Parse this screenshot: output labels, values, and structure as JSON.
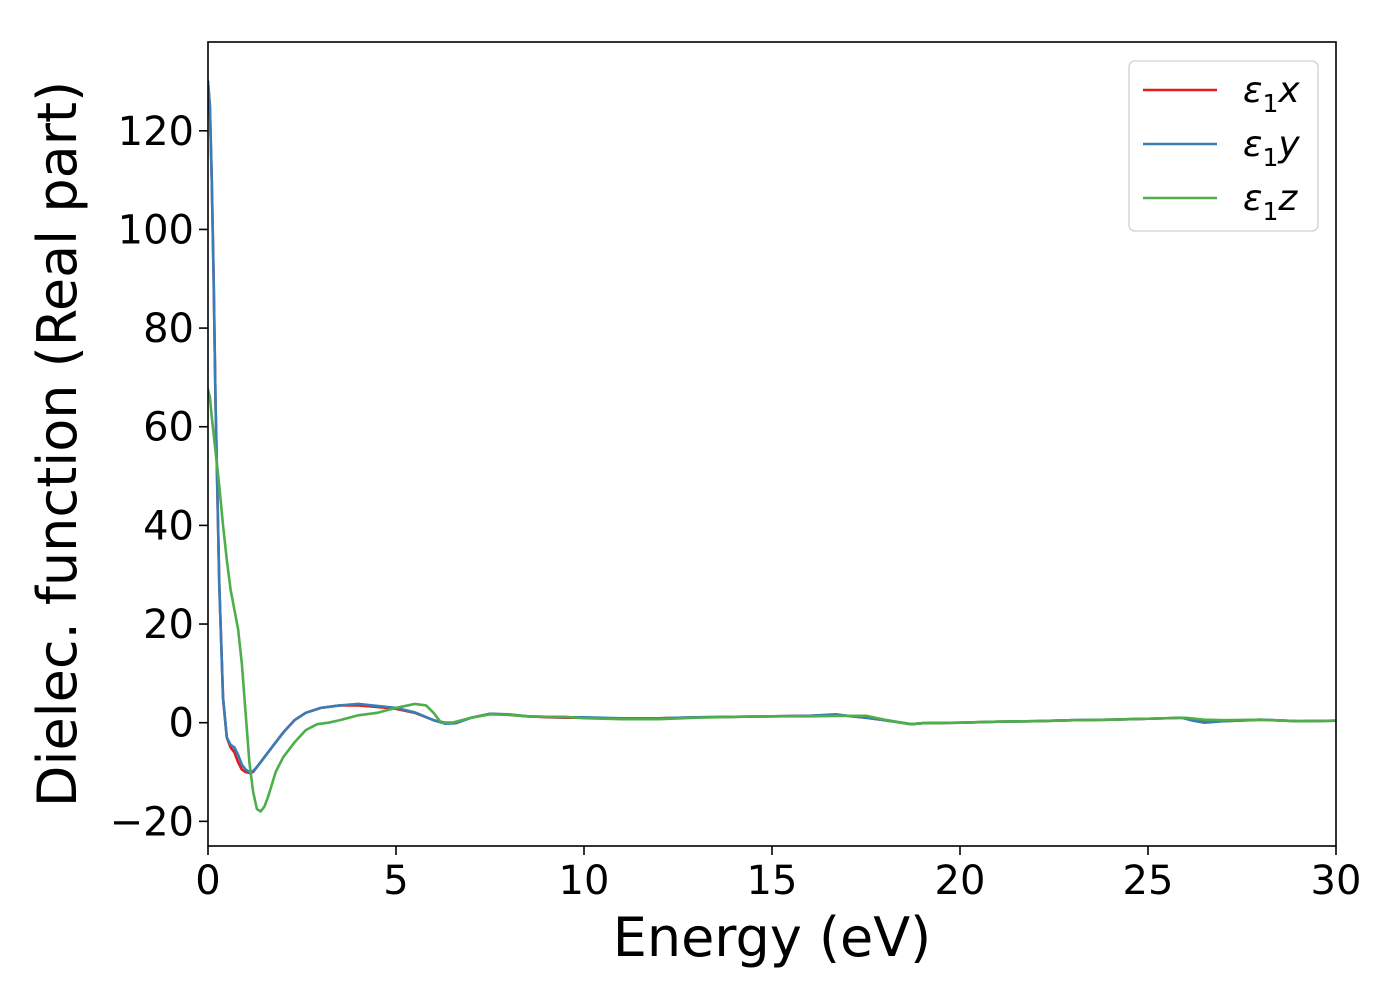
{
  "chart_data": {
    "type": "line",
    "title": "",
    "xlabel": "Energy (eV)",
    "ylabel": "Dielec. function (Real part)",
    "xlim": [
      0,
      30
    ],
    "ylim": [
      -25,
      138
    ],
    "xticks": [
      0,
      5,
      10,
      15,
      20,
      25,
      30
    ],
    "yticks": [
      -20,
      0,
      20,
      40,
      60,
      80,
      100,
      120
    ],
    "xtick_labels": [
      "0",
      "5",
      "10",
      "15",
      "20",
      "25",
      "30"
    ],
    "ytick_labels": [
      "−20",
      "0",
      "20",
      "40",
      "60",
      "80",
      "100",
      "120"
    ],
    "grid": false,
    "legend_placement": "top-right",
    "series": [
      {
        "name": "ε1x",
        "name_base": "ε",
        "name_sub": "1",
        "name_suffix": "x",
        "color": "#e41a1c",
        "x": [
          0,
          0.05,
          0.1,
          0.15,
          0.2,
          0.3,
          0.4,
          0.5,
          0.6,
          0.7,
          0.8,
          0.9,
          1.0,
          1.1,
          1.2,
          1.3,
          1.5,
          1.7,
          2.0,
          2.3,
          2.6,
          3.0,
          3.5,
          4.0,
          4.5,
          5.0,
          5.5,
          6.0,
          6.3,
          6.6,
          7.0,
          7.5,
          8.0,
          8.5,
          9.0,
          9.5,
          10.0,
          11.0,
          12.0,
          13.0,
          14.0,
          15.0,
          16.0,
          16.7,
          17.0,
          17.5,
          18.0,
          18.7,
          19.0,
          20.0,
          21.0,
          22.0,
          23.0,
          24.0,
          25.0,
          25.9,
          26.2,
          26.5,
          27.0,
          28.0,
          29.0,
          30.0
        ],
        "values": [
          130,
          125,
          110,
          90,
          65,
          28,
          5,
          -3,
          -5,
          -6,
          -8,
          -9.5,
          -10,
          -10.2,
          -10,
          -9,
          -7,
          -5,
          -2,
          0.5,
          2,
          3,
          3.5,
          3.5,
          3.2,
          2.8,
          2.0,
          0.5,
          0,
          0,
          1.0,
          1.8,
          1.6,
          1.3,
          1.1,
          1.0,
          1.0,
          0.8,
          0.9,
          1.1,
          1.2,
          1.3,
          1.4,
          1.6,
          1.4,
          1.0,
          0.5,
          -0.3,
          -0.1,
          0.0,
          0.2,
          0.3,
          0.5,
          0.6,
          0.8,
          1.0,
          0.5,
          0.2,
          0.3,
          0.6,
          0.3,
          0.4
        ]
      },
      {
        "name": "ε1y",
        "name_base": "ε",
        "name_sub": "1",
        "name_suffix": "y",
        "color": "#377eb8",
        "x": [
          0,
          0.05,
          0.1,
          0.15,
          0.2,
          0.3,
          0.4,
          0.5,
          0.6,
          0.7,
          0.8,
          0.9,
          1.0,
          1.1,
          1.2,
          1.3,
          1.5,
          1.7,
          2.0,
          2.3,
          2.6,
          3.0,
          3.5,
          4.0,
          4.5,
          5.0,
          5.5,
          6.0,
          6.3,
          6.6,
          7.0,
          7.5,
          8.0,
          8.5,
          9.0,
          9.5,
          10.0,
          11.0,
          12.0,
          13.0,
          14.0,
          15.0,
          16.0,
          16.7,
          17.0,
          17.5,
          18.0,
          18.7,
          19.0,
          20.0,
          21.0,
          22.0,
          23.0,
          24.0,
          25.0,
          25.9,
          26.2,
          26.5,
          27.0,
          28.0,
          29.0,
          30.0
        ],
        "values": [
          130,
          125,
          110,
          90,
          65,
          28,
          5,
          -3,
          -4.5,
          -5,
          -6.5,
          -8.5,
          -9.5,
          -10,
          -9.8,
          -9,
          -7,
          -5,
          -2,
          0.5,
          2,
          3,
          3.5,
          3.8,
          3.4,
          3.0,
          2.1,
          0.5,
          -0.2,
          -0.1,
          1.0,
          1.8,
          1.7,
          1.3,
          1.2,
          1.1,
          1.1,
          0.9,
          0.9,
          1.1,
          1.2,
          1.3,
          1.4,
          1.7,
          1.4,
          1.0,
          0.5,
          -0.3,
          -0.1,
          0.0,
          0.2,
          0.3,
          0.5,
          0.6,
          0.8,
          1.0,
          0.4,
          0.0,
          0.3,
          0.6,
          0.3,
          0.4
        ]
      },
      {
        "name": "ε1z",
        "name_base": "ε",
        "name_sub": "1",
        "name_suffix": "z",
        "color": "#4daf4a",
        "x": [
          0,
          0.05,
          0.1,
          0.2,
          0.3,
          0.4,
          0.5,
          0.6,
          0.7,
          0.8,
          0.9,
          1.0,
          1.1,
          1.2,
          1.3,
          1.4,
          1.5,
          1.6,
          1.7,
          1.8,
          2.0,
          2.3,
          2.6,
          2.9,
          3.2,
          3.5,
          4.0,
          4.5,
          5.0,
          5.5,
          5.8,
          6.0,
          6.2,
          6.5,
          7.0,
          7.5,
          8.0,
          8.5,
          9.0,
          9.5,
          10.0,
          11.0,
          12.0,
          13.0,
          14.0,
          15.0,
          16.0,
          17.0,
          17.5,
          18.0,
          18.7,
          19.0,
          20.0,
          21.0,
          22.0,
          23.0,
          24.0,
          25.0,
          26.0,
          26.5,
          27.0,
          28.0,
          29.0,
          30.0
        ],
        "values": [
          67.5,
          66,
          62,
          55,
          48,
          40,
          33,
          27,
          23,
          19,
          12,
          2,
          -8,
          -14,
          -17.5,
          -18,
          -17,
          -15,
          -12.5,
          -10,
          -7,
          -4,
          -1.5,
          -0.3,
          0,
          0.5,
          1.5,
          2.0,
          3.0,
          3.8,
          3.5,
          2.0,
          0,
          0,
          1.0,
          1.7,
          1.6,
          1.3,
          1.2,
          1.2,
          0.9,
          0.7,
          0.7,
          1.0,
          1.2,
          1.3,
          1.3,
          1.4,
          1.4,
          0.6,
          -0.3,
          -0.1,
          0.0,
          0.2,
          0.3,
          0.5,
          0.6,
          0.8,
          1.0,
          0.6,
          0.5,
          0.6,
          0.3,
          0.4
        ]
      }
    ]
  }
}
